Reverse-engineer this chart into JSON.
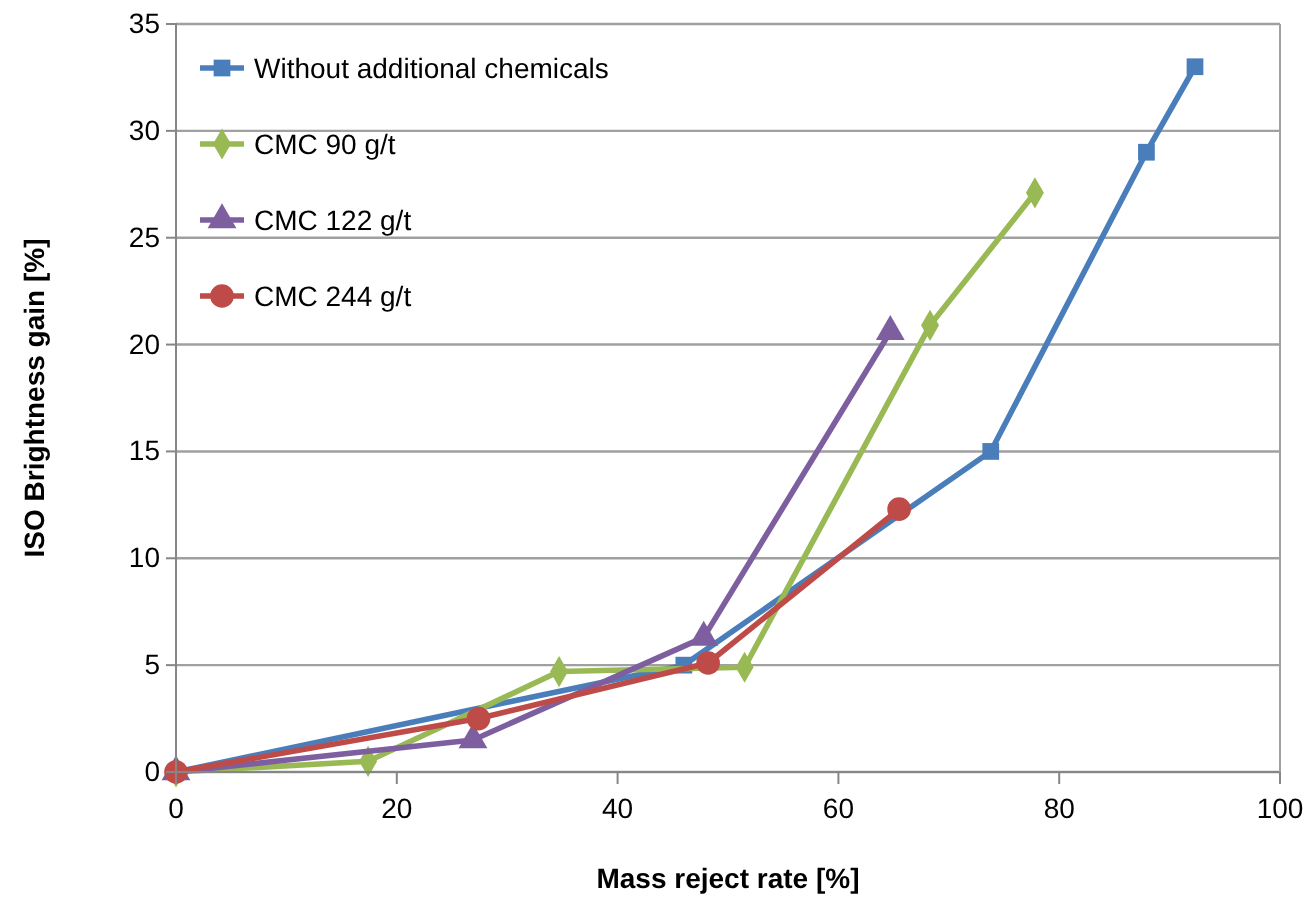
{
  "chart_data": {
    "type": "line",
    "xlabel": "Mass reject rate [%]",
    "ylabel": "ISO Brightness gain [%]",
    "xlim": [
      0,
      100
    ],
    "xticks": [
      0,
      20,
      40,
      60,
      80,
      100
    ],
    "ylim": [
      0,
      35
    ],
    "yticks": [
      0,
      5,
      10,
      15,
      20,
      25,
      30,
      35
    ],
    "grid": "y",
    "legend": "top left",
    "line_style": "solid",
    "series": [
      {
        "name": "Without additional chemicals",
        "color": "#4a7ebb",
        "marker": "square",
        "x": [
          0,
          46.0,
          73.8,
          87.9,
          92.3
        ],
        "values": [
          0,
          5.0,
          15.0,
          29.0,
          33.0
        ]
      },
      {
        "name": "CMC 90 g/t",
        "color": "#98b954",
        "marker": "diamond",
        "x": [
          0,
          17.4,
          34.7,
          51.5,
          68.3,
          77.8
        ],
        "values": [
          0,
          0.5,
          4.7,
          4.9,
          20.9,
          27.1
        ]
      },
      {
        "name": "CMC 122 g/t",
        "color": "#7d5fa0",
        "marker": "triangle",
        "x": [
          0,
          26.9,
          47.8,
          64.7
        ],
        "values": [
          0,
          1.5,
          6.3,
          20.6
        ]
      },
      {
        "name": "CMC 244 g/t",
        "color": "#be4b48",
        "marker": "circle",
        "x": [
          0,
          27.4,
          48.2,
          65.5
        ],
        "values": [
          0,
          2.5,
          5.1,
          12.3
        ]
      }
    ]
  }
}
